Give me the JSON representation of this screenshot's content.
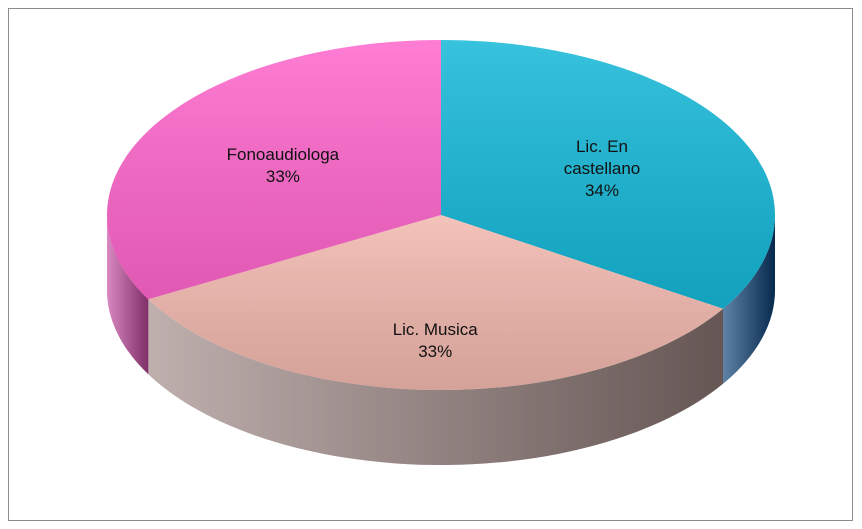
{
  "chart_data": {
    "type": "pie",
    "categories": [
      "Lic. En castellano",
      "Lic. Musica",
      "Fonoaudiologa"
    ],
    "values": [
      34,
      33,
      33
    ],
    "value_labels": [
      "34%",
      "33%",
      "33%"
    ],
    "colors": [
      "#14b8d8",
      "#f2b8ae",
      "#ff66cc"
    ],
    "side_colors": [
      "#0a3f78",
      "#9c8582",
      "#c4489f"
    ]
  }
}
